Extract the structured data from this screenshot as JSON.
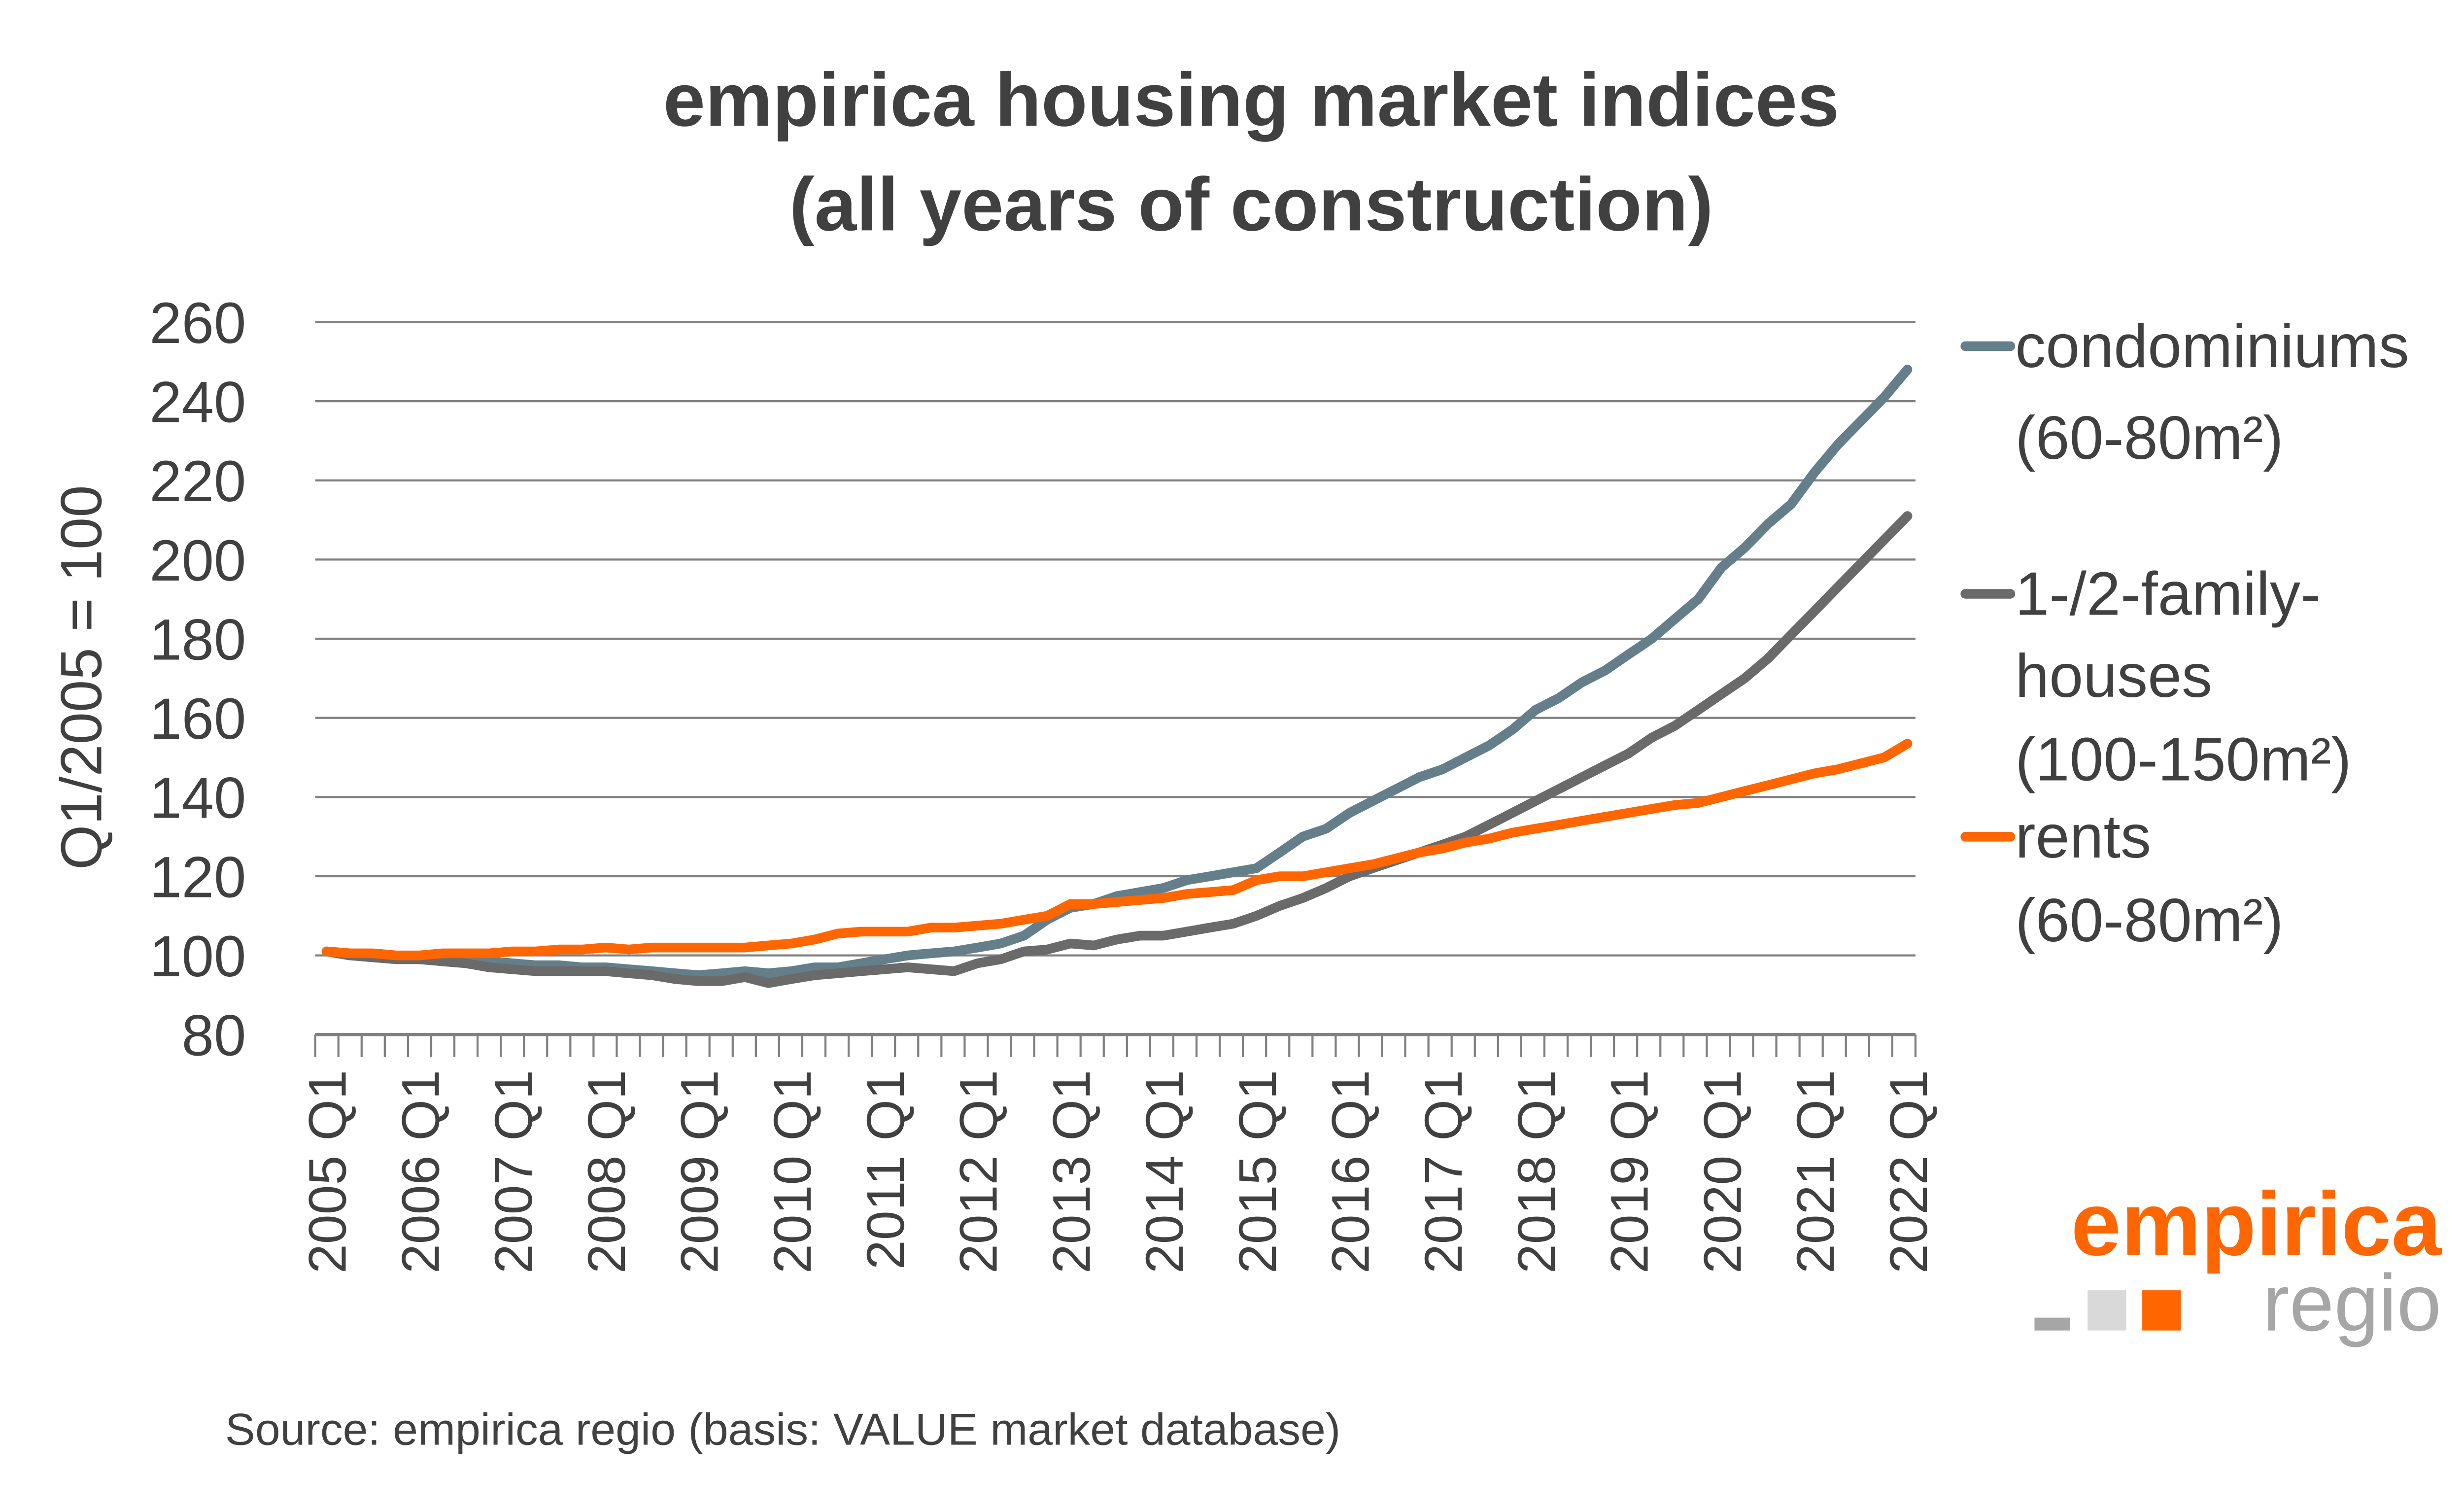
{
  "chart_data": {
    "type": "line",
    "title": [
      "empirica housing market indices",
      "(all years of construction)"
    ],
    "ylabel": "Q1/2005 = 100",
    "xlabel": "",
    "ylim": [
      80,
      260
    ],
    "yticks": [
      80,
      100,
      120,
      140,
      160,
      180,
      200,
      220,
      240,
      260
    ],
    "grid": true,
    "legend_position": "right",
    "x_start": "2005 Q1",
    "x_end": "2022 Q1",
    "xtick_labels": [
      "2005 Q1",
      "2006 Q1",
      "2007 Q1",
      "2008 Q1",
      "2009 Q1",
      "2010 Q1",
      "2011 Q1",
      "2012 Q1",
      "2013 Q1",
      "2014 Q1",
      "2015 Q1",
      "2016 Q1",
      "2017 Q1",
      "2018 Q1",
      "2019 Q1",
      "2020 Q1",
      "2021 Q1",
      "2022 Q1"
    ],
    "series": [
      {
        "name": [
          "condominiums",
          "(60-80m²)"
        ],
        "color": "#647f8a",
        "values": [
          101,
          100.5,
          100,
          99.5,
          99,
          99,
          98.5,
          98.5,
          98,
          97.5,
          97.5,
          97,
          97,
          96.5,
          96,
          95.5,
          95,
          95.5,
          96,
          95.5,
          96,
          97,
          97,
          98,
          99,
          100,
          100.5,
          101,
          102,
          103,
          105,
          109,
          112,
          113,
          115,
          116,
          117,
          119,
          120,
          121,
          122,
          126,
          130,
          132,
          136,
          139,
          142,
          145,
          147,
          150,
          153,
          157,
          162,
          165,
          169,
          172,
          176,
          180,
          185,
          190,
          198,
          203,
          209,
          214,
          222,
          229,
          235,
          241,
          248
        ]
      },
      {
        "name": [
          "1-/2-family-",
          "houses",
          "(100-150m²)"
        ],
        "color": "#6a6a6a",
        "values": [
          101,
          100,
          99.5,
          99,
          99,
          98.5,
          98,
          97,
          96.5,
          96,
          96,
          96,
          96,
          95.5,
          95,
          94,
          93.5,
          93.5,
          94.5,
          93,
          94,
          95,
          95.5,
          96,
          96.5,
          97,
          96.5,
          96,
          98,
          99,
          101,
          101.5,
          103,
          102.5,
          104,
          105,
          105,
          106,
          107,
          108,
          110,
          112.5,
          114.5,
          117,
          120,
          122,
          124,
          126,
          128,
          130,
          133,
          136,
          139,
          142,
          145,
          148,
          151,
          155,
          158,
          162,
          166,
          170,
          175,
          181,
          187,
          193,
          199,
          205,
          211
        ]
      },
      {
        "name": [
          "rents",
          "(60-80m²)"
        ],
        "color": "#ff6600",
        "values": [
          101,
          100.5,
          100.5,
          100,
          100,
          100.5,
          100.5,
          100.5,
          101,
          101,
          101.5,
          101.5,
          102,
          101.5,
          102,
          102,
          102,
          102,
          102,
          102.5,
          103,
          104,
          105.5,
          106,
          106,
          106,
          107,
          107,
          107.5,
          108,
          109,
          110,
          113,
          113,
          113.5,
          114,
          114.5,
          115.5,
          116,
          116.5,
          119,
          120,
          120,
          121,
          122,
          123,
          124.5,
          126,
          127,
          128.5,
          129.5,
          131,
          132,
          133,
          134,
          135,
          136,
          137,
          138,
          138.5,
          140,
          141.5,
          143,
          144.5,
          146,
          147,
          148.5,
          150,
          153.5
        ]
      }
    ],
    "source": "Source: empirica regio (basis: VALUE market database)"
  },
  "logo": {
    "line1": "empirica",
    "line2": "regio",
    "colors": {
      "orange": "#ff6600",
      "gray": "#a6a6a6",
      "light": "#d9d9d9"
    }
  }
}
